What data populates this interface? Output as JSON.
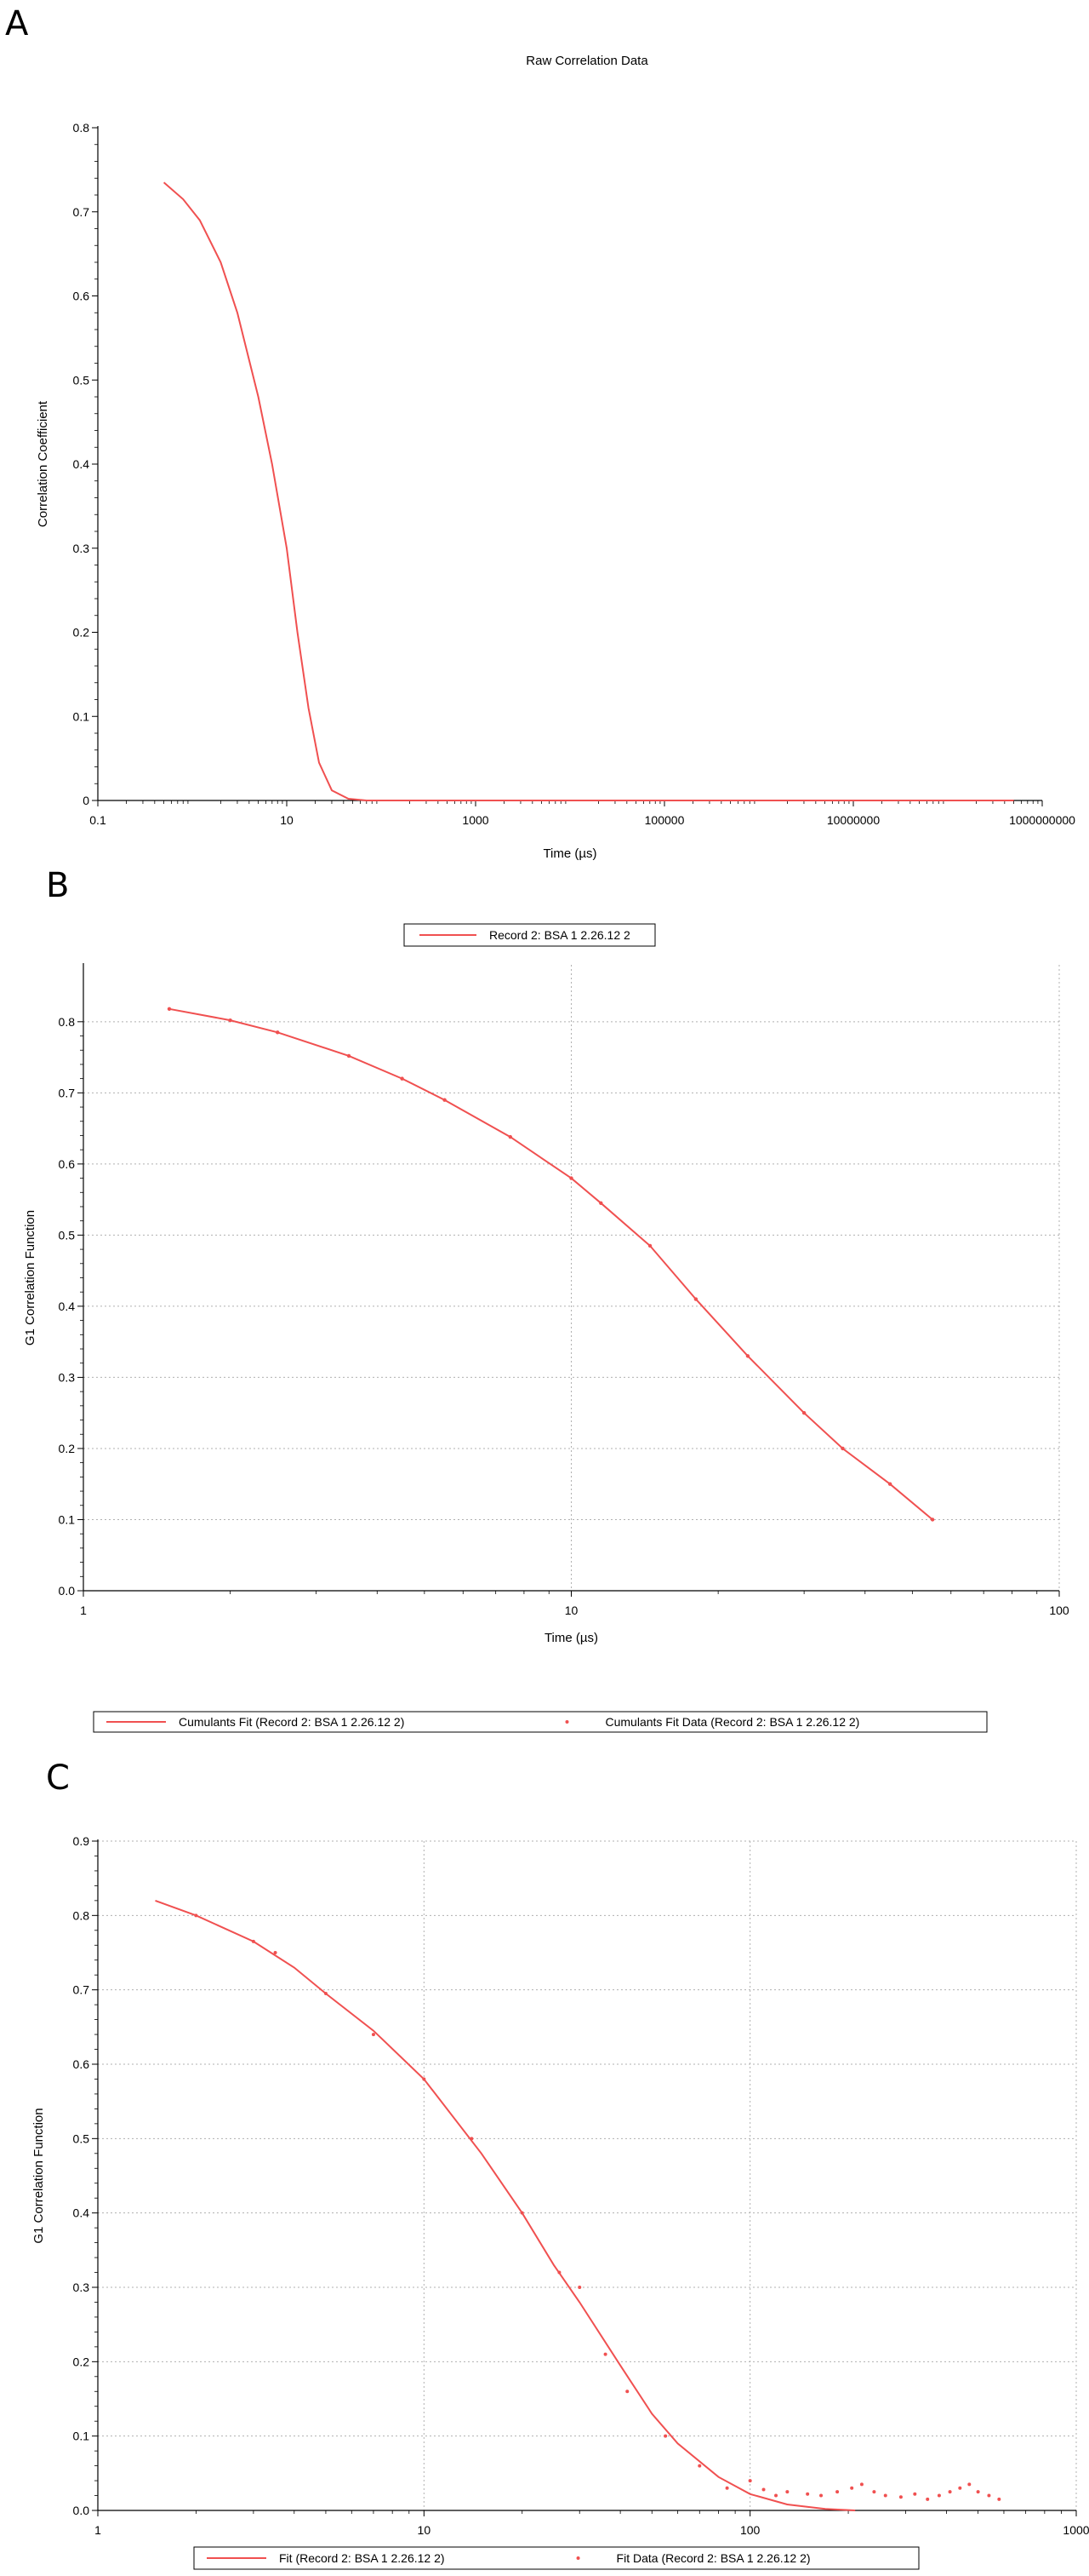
{
  "panels": {
    "a": "A",
    "b": "B",
    "c": "C"
  },
  "chart_data": [
    {
      "type": "line",
      "title": "Raw Correlation Data",
      "xlabel": "Time (µs)",
      "ylabel": "Correlation Coefficient",
      "x_scale": "log",
      "xlim": [
        0.1,
        1000000000
      ],
      "ylim": [
        0,
        0.8
      ],
      "x_ticks": [
        "0.1",
        "10",
        "1000",
        "100000",
        "10000000",
        "1000000000"
      ],
      "x_tick_values": [
        0.1,
        10,
        1000,
        100000,
        10000000,
        1000000000
      ],
      "y_ticks": [
        "0",
        "0.1",
        "0.2",
        "0.3",
        "0.4",
        "0.5",
        "0.6",
        "0.7",
        "0.8"
      ],
      "grid": false,
      "color": "#f05050",
      "series": [
        {
          "x": [
            0.5,
            0.8,
            1.2,
            2.0,
            3.0,
            5.0,
            7.0,
            10,
            13,
            17,
            22,
            30,
            45,
            70,
            100,
            1000,
            100000,
            10000000,
            500000000
          ],
          "y": [
            0.735,
            0.715,
            0.69,
            0.64,
            0.58,
            0.48,
            0.4,
            0.3,
            0.2,
            0.11,
            0.045,
            0.012,
            0.002,
            0.0,
            0.0,
            0.0,
            0.0,
            0.0,
            0.0
          ]
        }
      ]
    },
    {
      "type": "line",
      "legend": [
        "Record 2: BSA 1 2.26.12 2"
      ],
      "legend_position": "top-center",
      "xlabel": "Time (µs)",
      "ylabel": "G1 Correlation Function",
      "x_scale": "log",
      "xlim": [
        1,
        100
      ],
      "ylim": [
        0,
        0.88
      ],
      "x_ticks": [
        "1",
        "10",
        "100"
      ],
      "x_tick_values": [
        1,
        10,
        100
      ],
      "y_ticks": [
        "0.0",
        "0.1",
        "0.2",
        "0.3",
        "0.4",
        "0.5",
        "0.6",
        "0.7",
        "0.8"
      ],
      "grid": true,
      "color": "#f05050",
      "series": [
        {
          "name": "Record 2: BSA 1 2.26.12 2",
          "x": [
            1.5,
            2.0,
            2.5,
            3.5,
            4.5,
            5.5,
            7.5,
            10,
            11.5,
            14.5,
            18,
            23,
            30,
            36,
            45,
            55
          ],
          "y": [
            0.818,
            0.802,
            0.785,
            0.752,
            0.72,
            0.69,
            0.638,
            0.58,
            0.545,
            0.485,
            0.41,
            0.33,
            0.25,
            0.2,
            0.15,
            0.1
          ]
        }
      ]
    },
    {
      "type": "line",
      "legend": [
        "Cumulants Fit (Record 2: BSA 1 2.26.12 2)",
        "Cumulants Fit Data (Record 2: BSA 1 2.26.12 2)"
      ],
      "legend_position": "top-left",
      "xlabel": "Time (µs)",
      "ylabel": "G1 Correlation Function",
      "x_scale": "log",
      "xlim": [
        1,
        1000
      ],
      "ylim": [
        0,
        0.9
      ],
      "x_ticks": [
        "1",
        "10",
        "100",
        "1000"
      ],
      "x_tick_values": [
        1,
        10,
        100,
        1000
      ],
      "y_ticks": [
        "0.0",
        "0.1",
        "0.2",
        "0.3",
        "0.4",
        "0.5",
        "0.6",
        "0.7",
        "0.8",
        "0.9"
      ],
      "grid": true,
      "color": "#f05050",
      "series": [
        {
          "name": "Fit (Record 2: BSA 1 2.26.12 2)",
          "kind": "line",
          "x": [
            1.5,
            2,
            3,
            4,
            5,
            7,
            10,
            15,
            20,
            25,
            30,
            40,
            50,
            60,
            80,
            100,
            130,
            170,
            210
          ],
          "y": [
            0.82,
            0.8,
            0.765,
            0.73,
            0.695,
            0.645,
            0.58,
            0.48,
            0.4,
            0.33,
            0.28,
            0.195,
            0.13,
            0.09,
            0.045,
            0.022,
            0.008,
            0.002,
            0.0
          ]
        },
        {
          "name": "Fit Data (Record 2: BSA 1 2.26.12 2)",
          "kind": "points",
          "x": [
            2,
            3,
            3.5,
            5,
            7,
            10,
            14,
            20,
            26,
            30,
            36,
            42,
            55,
            70,
            85,
            100,
            110,
            120,
            130,
            150,
            165,
            185,
            205,
            220,
            240,
            260,
            290,
            320,
            350,
            380,
            410,
            440,
            470,
            500,
            540,
            580
          ],
          "y": [
            0.8,
            0.765,
            0.75,
            0.695,
            0.64,
            0.58,
            0.5,
            0.4,
            0.32,
            0.3,
            0.21,
            0.16,
            0.1,
            0.06,
            0.03,
            0.04,
            0.028,
            0.02,
            0.025,
            0.022,
            0.02,
            0.025,
            0.03,
            0.035,
            0.025,
            0.02,
            0.018,
            0.022,
            0.015,
            0.02,
            0.025,
            0.03,
            0.035,
            0.025,
            0.02,
            0.015
          ]
        }
      ]
    }
  ],
  "chart_c_legend": [
    "Fit (Record 2: BSA 1 2.26.12 2)",
    "Fit Data (Record 2: BSA 1 2.26.12 2)"
  ]
}
